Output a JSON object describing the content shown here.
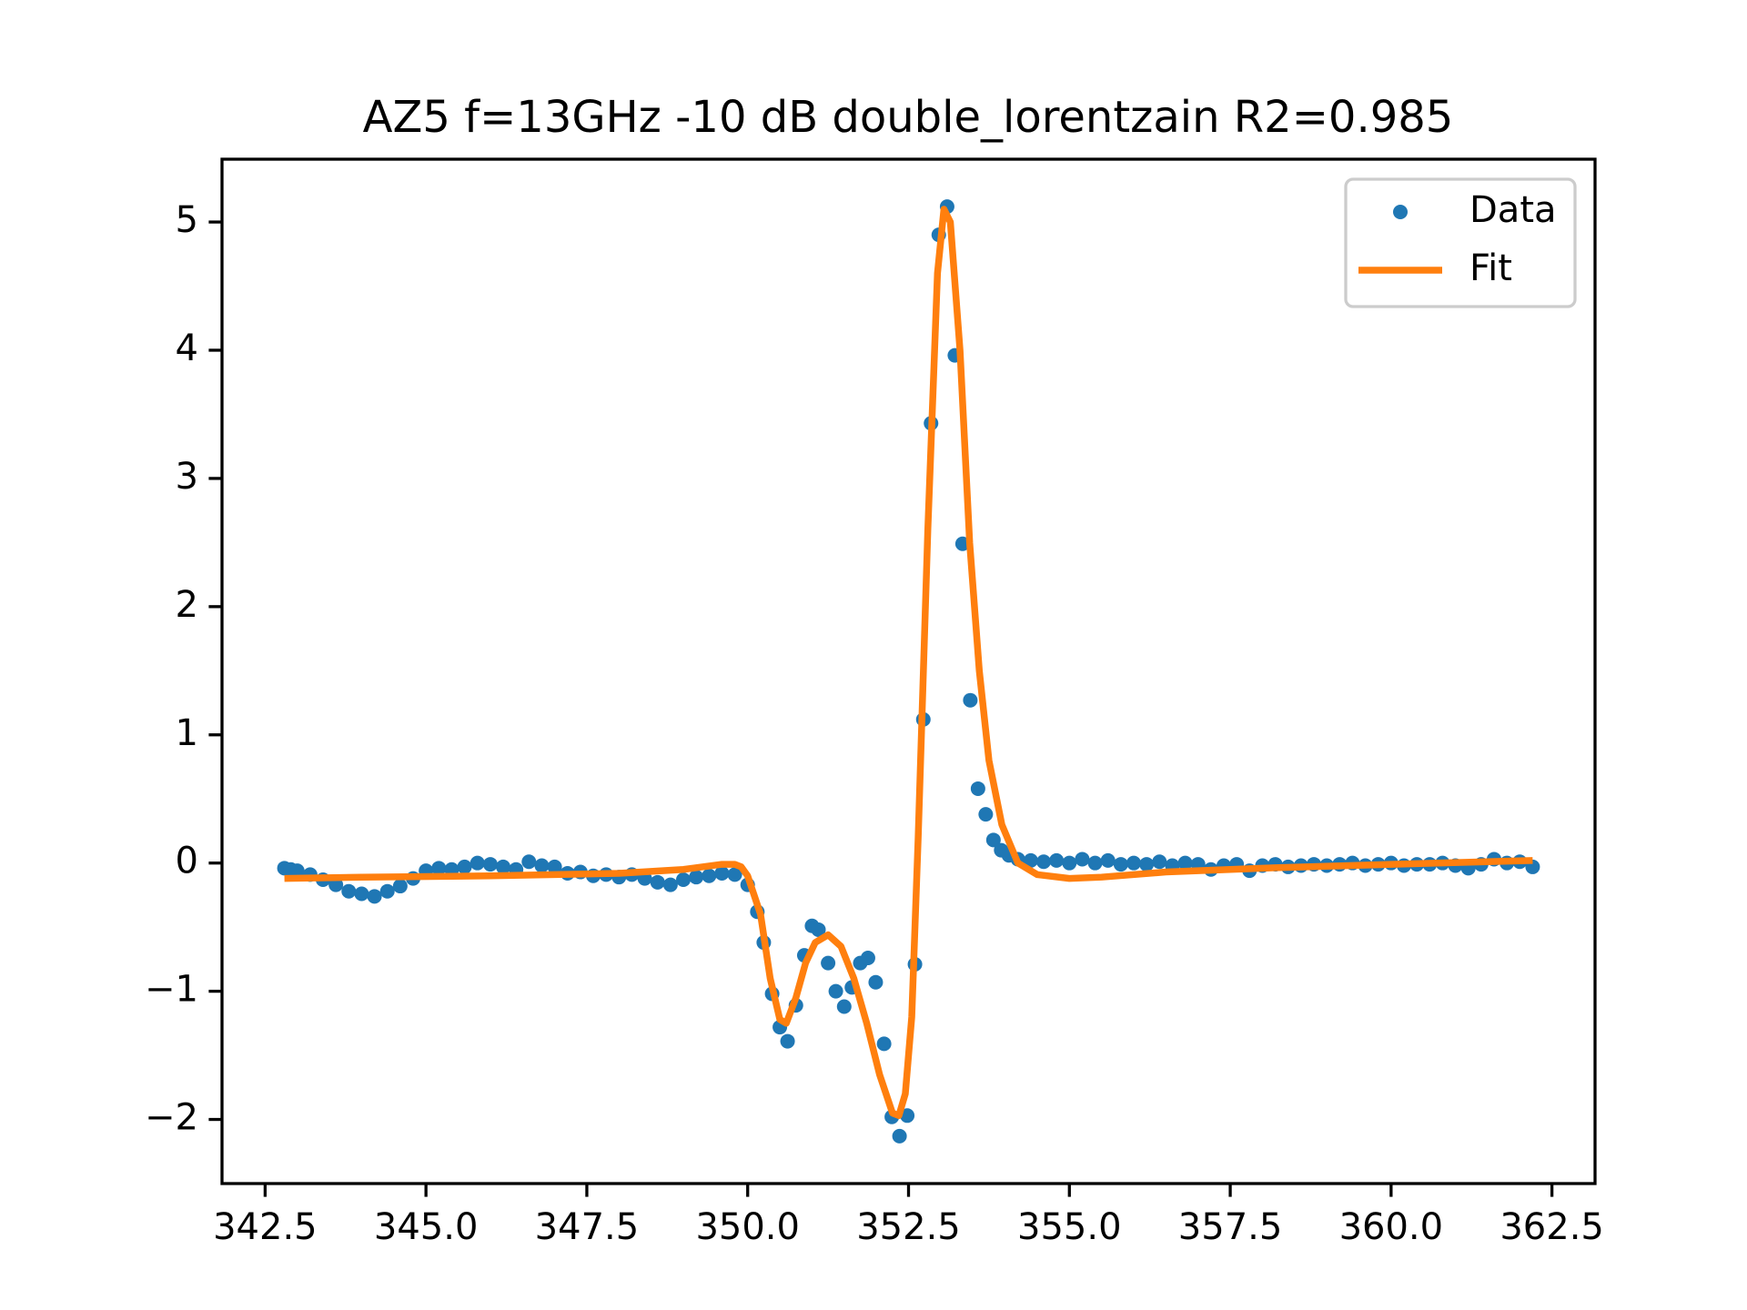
{
  "chart_data": {
    "type": "scatter-line",
    "title": "AZ5 f=13GHz -10 dB double_lorentzain R2=0.985",
    "xlim": [
      341.83,
      363.17
    ],
    "ylim": [
      -2.5,
      5.49
    ],
    "xticks": [
      {
        "value": 342.5,
        "label": "342.5"
      },
      {
        "value": 345,
        "label": "345.0"
      },
      {
        "value": 347.5,
        "label": "347.5"
      },
      {
        "value": 350,
        "label": "350.0"
      },
      {
        "value": 352.5,
        "label": "352.5"
      },
      {
        "value": 355,
        "label": "355.0"
      },
      {
        "value": 357.5,
        "label": "357.5"
      },
      {
        "value": 360,
        "label": "360.0"
      },
      {
        "value": 362.5,
        "label": "362.5"
      }
    ],
    "yticks": [
      {
        "value": -2,
        "label": "−2"
      },
      {
        "value": -1,
        "label": "−1"
      },
      0,
      1,
      2,
      3,
      4,
      5
    ],
    "legend": "upper right",
    "series": [
      {
        "name": "Data",
        "style": "markers",
        "color": "#1f77b4",
        "x": [
          342.8,
          342.9,
          343.0,
          343.2,
          343.4,
          343.6,
          343.8,
          344.0,
          344.2,
          344.4,
          344.6,
          344.8,
          345.0,
          345.2,
          345.4,
          345.6,
          345.8,
          346.0,
          346.2,
          346.4,
          346.6,
          346.8,
          347.0,
          347.2,
          347.4,
          347.6,
          347.8,
          348.0,
          348.2,
          348.4,
          348.6,
          348.8,
          349.0,
          349.2,
          349.4,
          349.6,
          349.8,
          350.0,
          350.15,
          350.25,
          350.38,
          350.5,
          350.62,
          350.75,
          350.88,
          351.0,
          351.1,
          351.25,
          351.37,
          351.5,
          351.62,
          351.75,
          351.87,
          351.99,
          352.12,
          352.24,
          352.36,
          352.48,
          352.6,
          352.73,
          352.85,
          352.97,
          353.1,
          353.22,
          353.34,
          353.46,
          353.58,
          353.7,
          353.82,
          353.94,
          354.06,
          354.2,
          354.4,
          354.6,
          354.8,
          355.0,
          355.2,
          355.4,
          355.6,
          355.8,
          356.0,
          356.2,
          356.4,
          356.6,
          356.8,
          357.0,
          357.2,
          357.4,
          357.6,
          357.8,
          358.0,
          358.2,
          358.4,
          358.6,
          358.8,
          359.0,
          359.2,
          359.4,
          359.6,
          359.8,
          360.0,
          360.2,
          360.4,
          360.6,
          360.8,
          361.0,
          361.2,
          361.4,
          361.6,
          361.8,
          362.0,
          362.2
        ],
        "values": [
          -0.04,
          -0.05,
          -0.06,
          -0.09,
          -0.13,
          -0.17,
          -0.22,
          -0.24,
          -0.26,
          -0.22,
          -0.18,
          -0.12,
          -0.06,
          -0.04,
          -0.05,
          -0.03,
          0.0,
          -0.01,
          -0.03,
          -0.05,
          0.01,
          -0.02,
          -0.03,
          -0.08,
          -0.07,
          -0.1,
          -0.09,
          -0.11,
          -0.09,
          -0.12,
          -0.15,
          -0.17,
          -0.13,
          -0.11,
          -0.1,
          -0.08,
          -0.09,
          -0.17,
          -0.38,
          -0.62,
          -1.02,
          -1.28,
          -1.39,
          -1.11,
          -0.72,
          -0.49,
          -0.52,
          -0.78,
          -1.0,
          -1.12,
          -0.97,
          -0.78,
          -0.74,
          -0.93,
          -1.41,
          -1.98,
          -2.13,
          -1.97,
          -0.79,
          1.12,
          3.43,
          4.9,
          5.12,
          3.96,
          2.49,
          1.27,
          0.58,
          0.38,
          0.18,
          0.1,
          0.06,
          0.03,
          0.02,
          0.01,
          0.02,
          0.0,
          0.03,
          0.0,
          0.02,
          -0.01,
          0.0,
          -0.01,
          0.01,
          -0.02,
          0.0,
          -0.01,
          -0.05,
          -0.02,
          -0.01,
          -0.06,
          -0.02,
          -0.01,
          -0.03,
          -0.02,
          -0.01,
          -0.02,
          -0.01,
          0.0,
          -0.02,
          -0.01,
          0.0,
          -0.02,
          -0.01,
          -0.01,
          0.0,
          -0.02,
          -0.04,
          -0.01,
          0.03,
          0.0,
          0.01,
          -0.03
        ]
      },
      {
        "name": "Fit",
        "style": "line",
        "color": "#ff7f0e",
        "x": [
          342.8,
          344.0,
          346.0,
          348.0,
          349.0,
          349.6,
          349.8,
          349.9,
          350.0,
          350.2,
          350.35,
          350.5,
          350.6,
          350.75,
          350.9,
          351.05,
          351.25,
          351.45,
          351.65,
          351.85,
          352.05,
          352.25,
          352.35,
          352.45,
          352.55,
          352.65,
          352.8,
          352.95,
          353.05,
          353.15,
          353.3,
          353.45,
          353.6,
          353.75,
          353.95,
          354.2,
          354.5,
          355.0,
          355.5,
          356.5,
          358.0,
          360.0,
          362.2
        ],
        "values": [
          -0.12,
          -0.11,
          -0.1,
          -0.08,
          -0.05,
          -0.01,
          -0.01,
          -0.03,
          -0.1,
          -0.4,
          -0.9,
          -1.22,
          -1.25,
          -1.05,
          -0.78,
          -0.62,
          -0.56,
          -0.65,
          -0.9,
          -1.25,
          -1.65,
          -1.95,
          -1.97,
          -1.8,
          -1.2,
          0.2,
          2.6,
          4.6,
          5.1,
          5.0,
          4.0,
          2.5,
          1.5,
          0.8,
          0.3,
          0.0,
          -0.09,
          -0.12,
          -0.11,
          -0.07,
          -0.04,
          -0.01,
          0.02
        ]
      }
    ]
  }
}
